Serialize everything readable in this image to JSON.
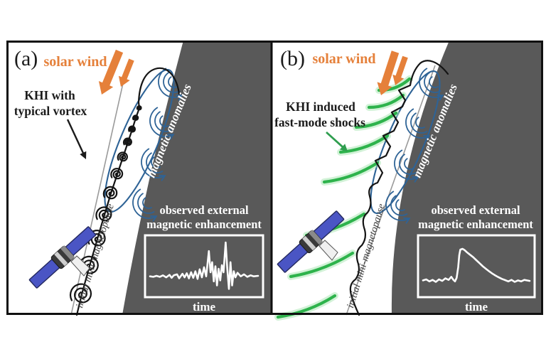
{
  "figure": {
    "panels": [
      {
        "label": "(a)",
        "solar_wind": "solar wind",
        "annotation_line1": "KHI with",
        "annotation_line2": "typical vortex",
        "magnetic_anomalies": "magnetic anomalies",
        "magnetopause": "initial mini-magnetopause",
        "inset": {
          "title_line1": "observed external",
          "title_line2": "magnetic enhancement",
          "xlabel": "time"
        }
      },
      {
        "label": "(b)",
        "solar_wind": "solar wind",
        "annotation_line1": "KHI induced",
        "annotation_line2": "fast-mode shocks",
        "magnetic_anomalies": "magnetic anomalies",
        "magnetopause": "initial mini-magnetopause",
        "inset": {
          "title_line1": "observed external",
          "title_line2": "magnetic enhancement",
          "xlabel": "time"
        }
      }
    ]
  },
  "colors": {
    "solar_wind_orange": "#e5803a",
    "surface_gray": "#595959",
    "anomaly_blue": "#2e6396",
    "shock_green": "#2eb34c",
    "shock_glow": "#a5e6b0",
    "shock_arrow_green": "#2f9e4f",
    "satellite_blue": "#4a55c4",
    "magnetopause_gray": "#9a9a9a",
    "boundary_black": "#141414",
    "text_dark": "#1b1b1b"
  },
  "chart_data": [
    {
      "type": "line",
      "title": "observed external magnetic enhancement",
      "xlabel": "time",
      "points": [
        [
          0,
          0.7
        ],
        [
          0.03,
          0.71
        ],
        [
          0.06,
          0.69
        ],
        [
          0.09,
          0.71
        ],
        [
          0.12,
          0.68
        ],
        [
          0.15,
          0.72
        ],
        [
          0.18,
          0.67
        ],
        [
          0.2,
          0.73
        ],
        [
          0.22,
          0.68
        ],
        [
          0.25,
          0.66
        ],
        [
          0.27,
          0.74
        ],
        [
          0.3,
          0.65
        ],
        [
          0.32,
          0.72
        ],
        [
          0.34,
          0.64
        ],
        [
          0.36,
          0.74
        ],
        [
          0.38,
          0.62
        ],
        [
          0.4,
          0.73
        ],
        [
          0.42,
          0.6
        ],
        [
          0.44,
          0.75
        ],
        [
          0.46,
          0.56
        ],
        [
          0.48,
          0.72
        ],
        [
          0.5,
          0.52
        ],
        [
          0.52,
          0.7
        ],
        [
          0.545,
          0.2
        ],
        [
          0.56,
          0.62
        ],
        [
          0.575,
          0.42
        ],
        [
          0.59,
          0.8
        ],
        [
          0.605,
          0.5
        ],
        [
          0.62,
          0.88
        ],
        [
          0.635,
          0.55
        ],
        [
          0.65,
          0.78
        ],
        [
          0.665,
          0.48
        ],
        [
          0.68,
          0.62
        ],
        [
          0.7,
          0.03
        ],
        [
          0.715,
          0.55
        ],
        [
          0.73,
          0.95
        ],
        [
          0.745,
          0.42
        ],
        [
          0.76,
          0.88
        ],
        [
          0.775,
          0.6
        ],
        [
          0.79,
          0.72
        ],
        [
          0.81,
          0.63
        ],
        [
          0.84,
          0.7
        ],
        [
          0.87,
          0.66
        ],
        [
          0.9,
          0.71
        ],
        [
          0.93,
          0.68
        ],
        [
          0.96,
          0.7
        ],
        [
          1,
          0.69
        ]
      ]
    },
    {
      "type": "line",
      "title": "observed external magnetic enhancement",
      "xlabel": "time",
      "points": [
        [
          0,
          0.78
        ],
        [
          0.03,
          0.76
        ],
        [
          0.06,
          0.8
        ],
        [
          0.09,
          0.77
        ],
        [
          0.12,
          0.81
        ],
        [
          0.15,
          0.76
        ],
        [
          0.18,
          0.79
        ],
        [
          0.21,
          0.74
        ],
        [
          0.24,
          0.77
        ],
        [
          0.265,
          0.71
        ],
        [
          0.285,
          0.77
        ],
        [
          0.3,
          0.8
        ],
        [
          0.315,
          0.73
        ],
        [
          0.33,
          0.52
        ],
        [
          0.34,
          0.28
        ],
        [
          0.35,
          0.17
        ],
        [
          0.37,
          0.155
        ],
        [
          0.39,
          0.18
        ],
        [
          0.41,
          0.22
        ],
        [
          0.44,
          0.27
        ],
        [
          0.47,
          0.32
        ],
        [
          0.5,
          0.38
        ],
        [
          0.53,
          0.44
        ],
        [
          0.56,
          0.5
        ],
        [
          0.59,
          0.55
        ],
        [
          0.62,
          0.6
        ],
        [
          0.65,
          0.645
        ],
        [
          0.68,
          0.685
        ],
        [
          0.71,
          0.72
        ],
        [
          0.74,
          0.75
        ],
        [
          0.77,
          0.775
        ],
        [
          0.8,
          0.8
        ],
        [
          0.83,
          0.77
        ],
        [
          0.86,
          0.81
        ],
        [
          0.89,
          0.78
        ],
        [
          0.92,
          0.8
        ],
        [
          0.95,
          0.77
        ],
        [
          1,
          0.79
        ]
      ]
    }
  ]
}
